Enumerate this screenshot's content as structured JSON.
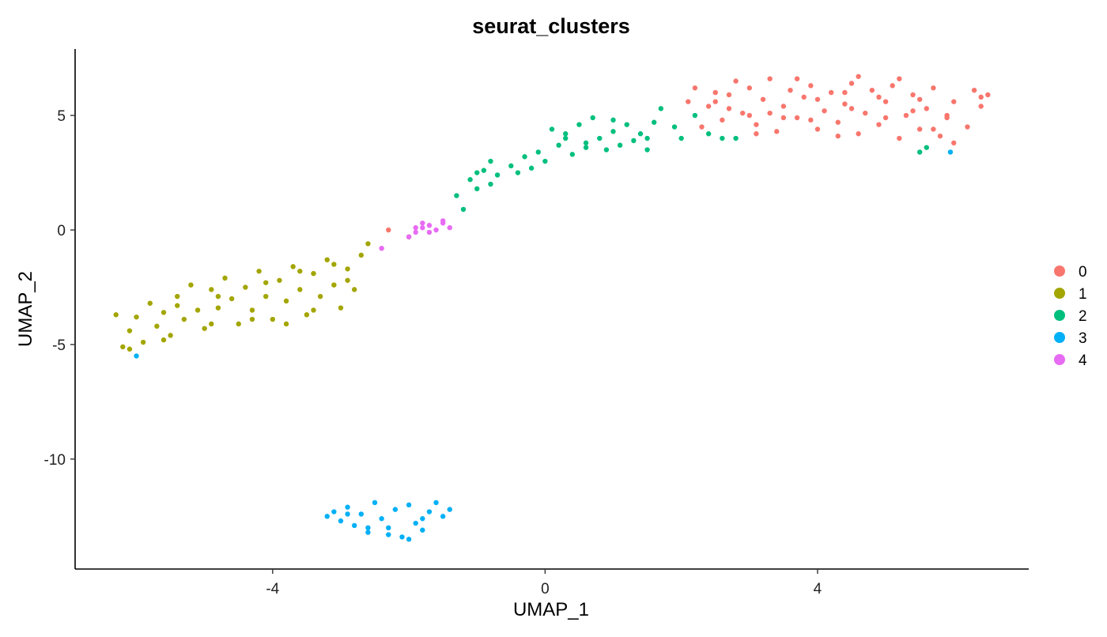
{
  "chart_data": {
    "type": "scatter",
    "title": "seurat_clusters",
    "xlabel": "UMAP_1",
    "ylabel": "UMAP_2",
    "xlim": [
      -6.9,
      7.1
    ],
    "ylim": [
      -14.8,
      7.9
    ],
    "xticks": [
      -4,
      0,
      4
    ],
    "xtick_labels": [
      "-4",
      "0",
      "4"
    ],
    "yticks": [
      5,
      0,
      -5,
      -10
    ],
    "ytick_labels": [
      "5",
      "0",
      "-5",
      "-10"
    ],
    "grid": false,
    "legend_position": "right",
    "series": [
      {
        "name": "0",
        "color": "#F8766D",
        "points": [
          [
            2.1,
            5.6
          ],
          [
            2.2,
            6.2
          ],
          [
            2.4,
            5.4
          ],
          [
            2.5,
            6.0
          ],
          [
            2.6,
            4.8
          ],
          [
            2.7,
            5.9
          ],
          [
            2.8,
            6.5
          ],
          [
            2.9,
            5.1
          ],
          [
            3.0,
            6.2
          ],
          [
            3.1,
            4.6
          ],
          [
            3.2,
            5.7
          ],
          [
            3.3,
            6.6
          ],
          [
            3.4,
            4.3
          ],
          [
            3.5,
            5.4
          ],
          [
            3.6,
            6.1
          ],
          [
            3.7,
            4.9
          ],
          [
            3.8,
            5.8
          ],
          [
            3.9,
            6.3
          ],
          [
            4.0,
            4.4
          ],
          [
            4.1,
            5.2
          ],
          [
            4.2,
            6.0
          ],
          [
            4.3,
            4.7
          ],
          [
            4.4,
            5.5
          ],
          [
            4.5,
            6.4
          ],
          [
            4.6,
            4.2
          ],
          [
            4.7,
            5.1
          ],
          [
            4.8,
            6.1
          ],
          [
            4.9,
            4.6
          ],
          [
            5.0,
            5.6
          ],
          [
            5.1,
            6.3
          ],
          [
            5.2,
            4.0
          ],
          [
            5.3,
            5.0
          ],
          [
            5.4,
            5.9
          ],
          [
            5.5,
            4.4
          ],
          [
            5.6,
            5.3
          ],
          [
            5.7,
            6.2
          ],
          [
            5.8,
            4.1
          ],
          [
            5.9,
            4.9
          ],
          [
            6.0,
            5.6
          ],
          [
            6.2,
            4.5
          ],
          [
            6.3,
            6.1
          ],
          [
            6.4,
            5.4
          ],
          [
            6.5,
            5.9
          ],
          [
            2.3,
            4.5
          ],
          [
            3.0,
            5.0
          ],
          [
            3.5,
            4.9
          ],
          [
            4.0,
            5.7
          ],
          [
            4.5,
            5.3
          ],
          [
            5.0,
            4.9
          ],
          [
            5.5,
            5.7
          ],
          [
            6.0,
            3.8
          ],
          [
            2.7,
            5.3
          ],
          [
            3.3,
            5.1
          ],
          [
            3.9,
            4.8
          ],
          [
            4.4,
            6.0
          ],
          [
            4.9,
            5.8
          ],
          [
            5.4,
            5.2
          ],
          [
            5.9,
            5.0
          ],
          [
            2.5,
            5.6
          ],
          [
            3.7,
            6.6
          ],
          [
            4.6,
            6.7
          ],
          [
            5.2,
            6.6
          ],
          [
            3.1,
            4.2
          ],
          [
            4.3,
            4.1
          ],
          [
            5.7,
            4.4
          ],
          [
            6.4,
            5.8
          ],
          [
            -2.3,
            0.0
          ]
        ]
      },
      {
        "name": "1",
        "color": "#A3A500",
        "points": [
          [
            -6.3,
            -3.7
          ],
          [
            -6.2,
            -5.1
          ],
          [
            -6.1,
            -4.4
          ],
          [
            -6.0,
            -3.8
          ],
          [
            -5.9,
            -4.9
          ],
          [
            -5.8,
            -3.2
          ],
          [
            -5.7,
            -4.2
          ],
          [
            -5.6,
            -3.6
          ],
          [
            -5.5,
            -4.6
          ],
          [
            -5.4,
            -2.9
          ],
          [
            -5.3,
            -3.9
          ],
          [
            -5.2,
            -2.4
          ],
          [
            -5.1,
            -3.5
          ],
          [
            -5.0,
            -4.3
          ],
          [
            -4.9,
            -2.6
          ],
          [
            -4.8,
            -3.4
          ],
          [
            -4.7,
            -2.1
          ],
          [
            -4.6,
            -3.0
          ],
          [
            -4.5,
            -4.1
          ],
          [
            -4.4,
            -2.5
          ],
          [
            -4.3,
            -3.5
          ],
          [
            -4.2,
            -1.8
          ],
          [
            -4.1,
            -2.9
          ],
          [
            -4.0,
            -3.9
          ],
          [
            -3.9,
            -2.2
          ],
          [
            -3.8,
            -3.1
          ],
          [
            -3.7,
            -1.6
          ],
          [
            -3.6,
            -2.6
          ],
          [
            -3.5,
            -3.7
          ],
          [
            -3.4,
            -1.9
          ],
          [
            -3.3,
            -2.9
          ],
          [
            -3.2,
            -1.3
          ],
          [
            -3.1,
            -2.4
          ],
          [
            -3.0,
            -3.4
          ],
          [
            -2.9,
            -1.7
          ],
          [
            -2.8,
            -2.6
          ],
          [
            -2.7,
            -1.1
          ],
          [
            -6.1,
            -5.2
          ],
          [
            -5.6,
            -4.8
          ],
          [
            -4.9,
            -4.1
          ],
          [
            -4.3,
            -3.9
          ],
          [
            -3.8,
            -4.1
          ],
          [
            -3.4,
            -3.5
          ],
          [
            -5.4,
            -3.3
          ],
          [
            -4.8,
            -2.9
          ],
          [
            -4.1,
            -2.3
          ],
          [
            -3.6,
            -1.8
          ],
          [
            -3.1,
            -1.5
          ],
          [
            -2.9,
            -2.2
          ],
          [
            -2.6,
            -0.6
          ],
          [
            -2.0,
            -0.3
          ]
        ]
      },
      {
        "name": "2",
        "color": "#00BF7D",
        "points": [
          [
            -1.2,
            0.9
          ],
          [
            -1.1,
            2.2
          ],
          [
            -1.0,
            1.8
          ],
          [
            -0.9,
            2.6
          ],
          [
            -0.8,
            3.0
          ],
          [
            -0.7,
            2.4
          ],
          [
            -0.5,
            2.8
          ],
          [
            -0.4,
            2.5
          ],
          [
            -0.3,
            3.2
          ],
          [
            -0.2,
            2.7
          ],
          [
            -0.1,
            3.4
          ],
          [
            0.0,
            3.0
          ],
          [
            0.1,
            4.4
          ],
          [
            0.2,
            3.7
          ],
          [
            0.3,
            4.2
          ],
          [
            0.4,
            3.3
          ],
          [
            0.5,
            4.6
          ],
          [
            0.6,
            3.8
          ],
          [
            0.7,
            4.9
          ],
          [
            0.8,
            4.0
          ],
          [
            0.9,
            3.5
          ],
          [
            1.0,
            4.3
          ],
          [
            1.1,
            3.7
          ],
          [
            1.2,
            4.6
          ],
          [
            1.3,
            3.9
          ],
          [
            1.4,
            4.2
          ],
          [
            1.5,
            3.5
          ],
          [
            1.6,
            4.7
          ],
          [
            1.7,
            5.3
          ],
          [
            1.9,
            4.5
          ],
          [
            2.0,
            4.0
          ],
          [
            2.2,
            5.0
          ],
          [
            2.4,
            4.2
          ],
          [
            2.6,
            4.0
          ],
          [
            2.8,
            4.0
          ],
          [
            5.5,
            3.4
          ],
          [
            5.6,
            3.6
          ],
          [
            -1.3,
            1.5
          ],
          [
            0.6,
            3.6
          ],
          [
            1.0,
            4.8
          ],
          [
            -0.8,
            2.0
          ],
          [
            0.3,
            4.0
          ],
          [
            1.5,
            4.0
          ],
          [
            -1.0,
            2.5
          ]
        ]
      },
      {
        "name": "3",
        "color": "#00B0F6",
        "points": [
          [
            -3.2,
            -12.5
          ],
          [
            -3.1,
            -12.3
          ],
          [
            -3.0,
            -12.7
          ],
          [
            -2.9,
            -12.1
          ],
          [
            -2.8,
            -12.9
          ],
          [
            -2.7,
            -12.4
          ],
          [
            -2.6,
            -13.2
          ],
          [
            -2.5,
            -11.9
          ],
          [
            -2.4,
            -12.6
          ],
          [
            -2.3,
            -13.0
          ],
          [
            -2.2,
            -12.2
          ],
          [
            -2.1,
            -13.4
          ],
          [
            -2.0,
            -12.0
          ],
          [
            -1.9,
            -12.8
          ],
          [
            -1.8,
            -13.1
          ],
          [
            -1.7,
            -12.3
          ],
          [
            -1.6,
            -11.9
          ],
          [
            -1.5,
            -12.5
          ],
          [
            -1.4,
            -12.2
          ],
          [
            -2.6,
            -13.0
          ],
          [
            -2.3,
            -13.3
          ],
          [
            -2.0,
            -13.5
          ],
          [
            -1.8,
            -12.6
          ],
          [
            -2.9,
            -12.4
          ],
          [
            -6.0,
            -5.5
          ],
          [
            5.95,
            3.4
          ]
        ]
      },
      {
        "name": "4",
        "color": "#E76BF3",
        "points": [
          [
            -2.0,
            -0.3
          ],
          [
            -1.9,
            0.1
          ],
          [
            -1.8,
            0.3
          ],
          [
            -1.7,
            0.2
          ],
          [
            -1.6,
            0.0
          ],
          [
            -1.5,
            0.3
          ],
          [
            -1.4,
            0.1
          ],
          [
            -1.7,
            -0.1
          ],
          [
            -1.5,
            0.4
          ],
          [
            -1.9,
            -0.1
          ],
          [
            -1.8,
            0.1
          ],
          [
            -2.4,
            -0.8
          ]
        ]
      }
    ]
  }
}
